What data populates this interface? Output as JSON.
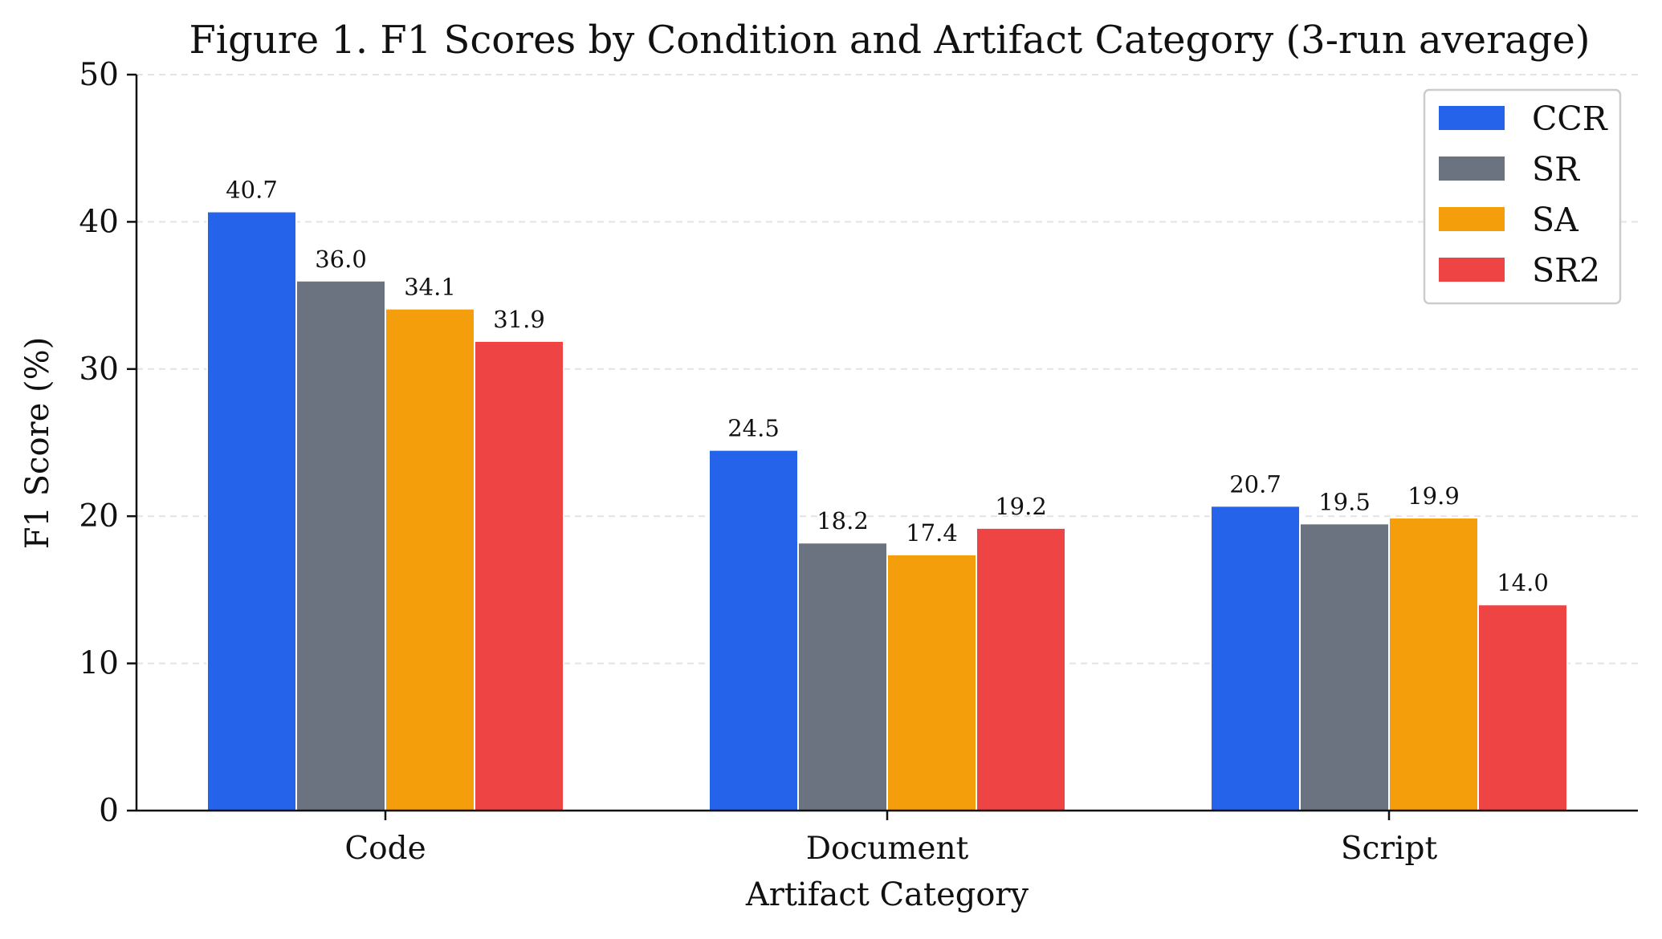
{
  "chart_data": {
    "type": "bar",
    "title": "Figure 1. F1 Scores by Condition and Artifact Category (3-run average)",
    "xlabel": "Artifact Category",
    "ylabel": "F1 Score (%)",
    "categories": [
      "Code",
      "Document",
      "Script"
    ],
    "ylim": [
      0,
      50
    ],
    "yticks": [
      0,
      10,
      20,
      30,
      40,
      50
    ],
    "grid": "horizontal-dashed",
    "legend_position": "top-right",
    "series": [
      {
        "name": "CCR",
        "color": "#2563eb",
        "values": [
          40.7,
          24.5,
          20.7
        ],
        "labels": [
          "40.7",
          "24.5",
          "20.7"
        ]
      },
      {
        "name": "SR",
        "color": "#6b7280",
        "values": [
          36.0,
          18.2,
          19.5
        ],
        "labels": [
          "36.0",
          "18.2",
          "19.5"
        ]
      },
      {
        "name": "SA",
        "color": "#f59e0b",
        "values": [
          34.1,
          17.4,
          19.9
        ],
        "labels": [
          "34.1",
          "17.4",
          "19.9"
        ]
      },
      {
        "name": "SR2",
        "color": "#ef4444",
        "values": [
          31.9,
          19.2,
          14.0
        ],
        "labels": [
          "31.9",
          "19.2",
          "14.0"
        ]
      }
    ]
  }
}
